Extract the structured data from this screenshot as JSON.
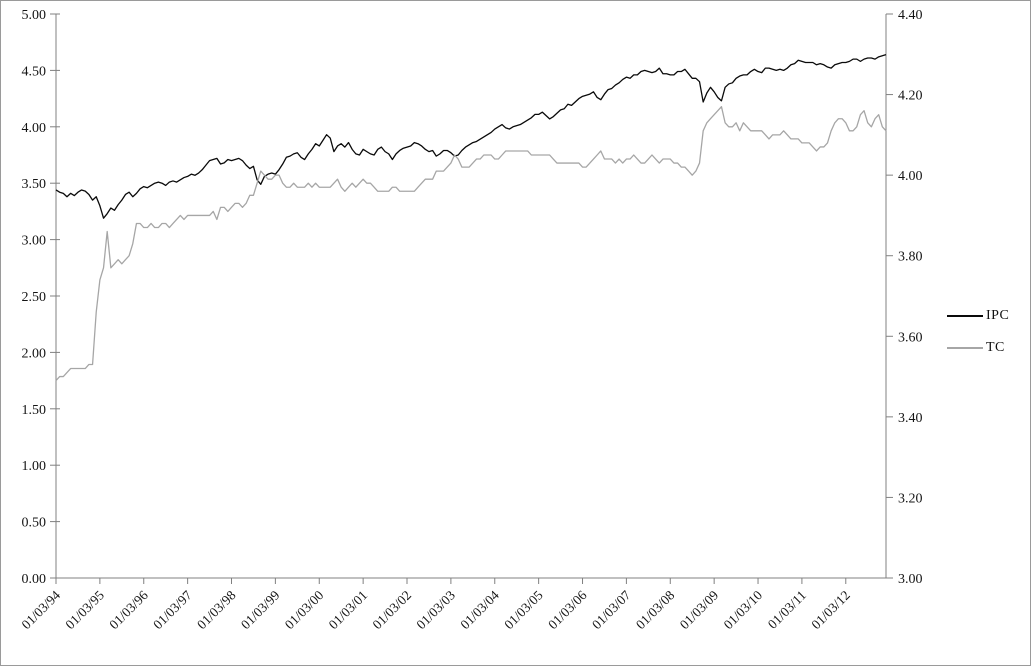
{
  "chart_data": {
    "type": "line",
    "title": "",
    "xlabel": "",
    "ylabel_left": "",
    "ylabel_right": "",
    "grid": false,
    "legend_position": "right-middle",
    "left_axis": {
      "min": 0.0,
      "max": 5.0,
      "tick_labels": [
        "5.00",
        "4.50",
        "4.00",
        "3.50",
        "3.00",
        "2.50",
        "2.00",
        "1.50",
        "1.00",
        "0.50",
        "0.00"
      ],
      "tick_values": [
        5.0,
        4.5,
        4.0,
        3.5,
        3.0,
        2.5,
        2.0,
        1.5,
        1.0,
        0.5,
        0.0
      ]
    },
    "right_axis": {
      "min": 3.0,
      "max": 4.4,
      "tick_labels": [
        "4.40",
        "4.20",
        "4.00",
        "3.80",
        "3.60",
        "3.40",
        "3.20",
        "3.00"
      ],
      "tick_values": [
        4.4,
        4.2,
        4.0,
        3.8,
        3.6,
        3.4,
        3.2,
        3.0
      ]
    },
    "x_tick_labels": [
      "01/03/94",
      "01/03/95",
      "01/03/96",
      "01/03/97",
      "01/03/98",
      "01/03/99",
      "01/03/00",
      "01/03/01",
      "01/03/02",
      "01/03/03",
      "01/03/04",
      "01/03/05",
      "01/03/06",
      "01/03/07",
      "01/03/08",
      "01/03/09",
      "01/03/10",
      "01/03/11",
      "01/03/12"
    ],
    "x_start": "01/1994",
    "x_end": "12/2012",
    "x_frequency": "monthly",
    "series": [
      {
        "name": "IPC",
        "axis": "left",
        "color": "#0a0a0a",
        "values": [
          3.44,
          3.42,
          3.41,
          3.38,
          3.41,
          3.39,
          3.42,
          3.44,
          3.43,
          3.4,
          3.35,
          3.38,
          3.3,
          3.19,
          3.23,
          3.28,
          3.26,
          3.31,
          3.35,
          3.4,
          3.42,
          3.38,
          3.41,
          3.45,
          3.47,
          3.46,
          3.48,
          3.5,
          3.51,
          3.5,
          3.48,
          3.51,
          3.52,
          3.51,
          3.53,
          3.55,
          3.56,
          3.58,
          3.57,
          3.59,
          3.62,
          3.66,
          3.7,
          3.71,
          3.72,
          3.67,
          3.68,
          3.71,
          3.7,
          3.71,
          3.72,
          3.7,
          3.66,
          3.63,
          3.65,
          3.53,
          3.49,
          3.56,
          3.58,
          3.59,
          3.58,
          3.62,
          3.67,
          3.73,
          3.74,
          3.76,
          3.77,
          3.73,
          3.71,
          3.76,
          3.8,
          3.85,
          3.83,
          3.88,
          3.93,
          3.9,
          3.78,
          3.83,
          3.85,
          3.82,
          3.86,
          3.8,
          3.76,
          3.75,
          3.8,
          3.78,
          3.76,
          3.75,
          3.8,
          3.82,
          3.78,
          3.76,
          3.71,
          3.76,
          3.79,
          3.81,
          3.82,
          3.83,
          3.86,
          3.85,
          3.83,
          3.8,
          3.78,
          3.79,
          3.74,
          3.76,
          3.79,
          3.79,
          3.77,
          3.74,
          3.75,
          3.79,
          3.82,
          3.84,
          3.86,
          3.87,
          3.89,
          3.91,
          3.93,
          3.95,
          3.98,
          4.0,
          4.02,
          3.99,
          3.98,
          4.0,
          4.01,
          4.02,
          4.04,
          4.06,
          4.08,
          4.11,
          4.11,
          4.13,
          4.1,
          4.07,
          4.09,
          4.12,
          4.15,
          4.16,
          4.2,
          4.19,
          4.22,
          4.25,
          4.27,
          4.28,
          4.29,
          4.31,
          4.26,
          4.24,
          4.29,
          4.33,
          4.34,
          4.37,
          4.39,
          4.42,
          4.44,
          4.43,
          4.46,
          4.46,
          4.49,
          4.5,
          4.49,
          4.48,
          4.49,
          4.52,
          4.47,
          4.47,
          4.46,
          4.46,
          4.49,
          4.49,
          4.51,
          4.47,
          4.43,
          4.43,
          4.4,
          4.22,
          4.3,
          4.35,
          4.31,
          4.26,
          4.23,
          4.35,
          4.38,
          4.39,
          4.43,
          4.45,
          4.46,
          4.46,
          4.49,
          4.51,
          4.49,
          4.48,
          4.52,
          4.52,
          4.51,
          4.5,
          4.51,
          4.5,
          4.52,
          4.55,
          4.56,
          4.59,
          4.58,
          4.57,
          4.57,
          4.57,
          4.55,
          4.56,
          4.55,
          4.53,
          4.52,
          4.55,
          4.56,
          4.57,
          4.57,
          4.58,
          4.6,
          4.6,
          4.58,
          4.6,
          4.61,
          4.61,
          4.6,
          4.62,
          4.63,
          4.64
        ]
      },
      {
        "name": "TC",
        "axis": "right",
        "color": "#a6a6a6",
        "values": [
          3.49,
          3.5,
          3.5,
          3.51,
          3.52,
          3.52,
          3.52,
          3.52,
          3.52,
          3.53,
          3.53,
          3.66,
          3.74,
          3.77,
          3.86,
          3.77,
          3.78,
          3.79,
          3.78,
          3.79,
          3.8,
          3.83,
          3.88,
          3.88,
          3.87,
          3.87,
          3.88,
          3.87,
          3.87,
          3.88,
          3.88,
          3.87,
          3.88,
          3.89,
          3.9,
          3.89,
          3.9,
          3.9,
          3.9,
          3.9,
          3.9,
          3.9,
          3.9,
          3.91,
          3.89,
          3.92,
          3.92,
          3.91,
          3.92,
          3.93,
          3.93,
          3.92,
          3.93,
          3.95,
          3.95,
          3.98,
          4.01,
          4.0,
          3.99,
          3.99,
          4.0,
          4.0,
          3.98,
          3.97,
          3.97,
          3.98,
          3.97,
          3.97,
          3.97,
          3.98,
          3.97,
          3.98,
          3.97,
          3.97,
          3.97,
          3.97,
          3.98,
          3.99,
          3.97,
          3.96,
          3.97,
          3.98,
          3.97,
          3.98,
          3.99,
          3.98,
          3.98,
          3.97,
          3.96,
          3.96,
          3.96,
          3.96,
          3.97,
          3.97,
          3.96,
          3.96,
          3.96,
          3.96,
          3.96,
          3.97,
          3.98,
          3.99,
          3.99,
          3.99,
          4.01,
          4.01,
          4.01,
          4.02,
          4.03,
          4.05,
          4.04,
          4.02,
          4.02,
          4.02,
          4.03,
          4.04,
          4.04,
          4.05,
          4.05,
          4.05,
          4.04,
          4.04,
          4.05,
          4.06,
          4.06,
          4.06,
          4.06,
          4.06,
          4.06,
          4.06,
          4.05,
          4.05,
          4.05,
          4.05,
          4.05,
          4.05,
          4.04,
          4.03,
          4.03,
          4.03,
          4.03,
          4.03,
          4.03,
          4.03,
          4.02,
          4.02,
          4.03,
          4.04,
          4.05,
          4.06,
          4.04,
          4.04,
          4.04,
          4.03,
          4.04,
          4.03,
          4.04,
          4.04,
          4.05,
          4.04,
          4.03,
          4.03,
          4.04,
          4.05,
          4.04,
          4.03,
          4.04,
          4.04,
          4.04,
          4.03,
          4.03,
          4.02,
          4.02,
          4.01,
          4.0,
          4.01,
          4.03,
          4.11,
          4.13,
          4.14,
          4.15,
          4.16,
          4.17,
          4.13,
          4.12,
          4.12,
          4.13,
          4.11,
          4.13,
          4.12,
          4.11,
          4.11,
          4.11,
          4.11,
          4.1,
          4.09,
          4.1,
          4.1,
          4.1,
          4.11,
          4.1,
          4.09,
          4.09,
          4.09,
          4.08,
          4.08,
          4.08,
          4.07,
          4.06,
          4.07,
          4.07,
          4.08,
          4.11,
          4.13,
          4.14,
          4.14,
          4.13,
          4.11,
          4.11,
          4.12,
          4.15,
          4.16,
          4.13,
          4.12,
          4.14,
          4.15,
          4.12,
          4.11
        ]
      }
    ],
    "colors": {
      "axis_line": "#808080",
      "tick_label": "#141414",
      "ipc_line": "#0a0a0a",
      "tc_line": "#a6a6a6",
      "background": "#ffffff"
    }
  }
}
